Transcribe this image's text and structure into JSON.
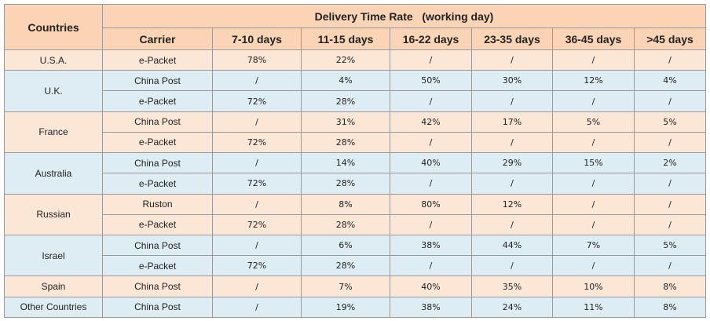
{
  "title": "Delivery Time Rate   (working day)",
  "headers": {
    "countries": "Countries",
    "carrier": "Carrier",
    "ranges": [
      "7-10 days",
      "11-15 days",
      "16-22 days",
      "23-35 days",
      "36-45 days",
      ">45 days"
    ]
  },
  "colors": {
    "header": "#fad4b4",
    "peach": "#fce6d6",
    "blue": "#ddedf3",
    "border": "#9a9a9a"
  },
  "rows": [
    {
      "country": "U.S.A.",
      "carrier": "e-Packet",
      "values": [
        "78%",
        "22%",
        "/",
        "/",
        "/",
        "/"
      ]
    },
    {
      "country": "U.K.",
      "carrier": "China Post",
      "values": [
        "/",
        "4%",
        "50%",
        "30%",
        "12%",
        "4%"
      ]
    },
    {
      "carrier": "e-Packet",
      "values": [
        "72%",
        "28%",
        "/",
        "/",
        "/",
        "/"
      ]
    },
    {
      "country": "France",
      "carrier": "China Post",
      "values": [
        "/",
        "31%",
        "42%",
        "17%",
        "5%",
        "5%"
      ]
    },
    {
      "carrier": "e-Packet",
      "values": [
        "72%",
        "28%",
        "/",
        "/",
        "/",
        "/"
      ]
    },
    {
      "country": "Australia",
      "carrier": "China Post",
      "values": [
        "/",
        "14%",
        "40%",
        "29%",
        "15%",
        "2%"
      ]
    },
    {
      "carrier": "e-Packet",
      "values": [
        "72%",
        "28%",
        "/",
        "/",
        "/",
        "/"
      ]
    },
    {
      "country": "Russian",
      "carrier": "Ruston",
      "values": [
        "/",
        "8%",
        "80%",
        "12%",
        "/",
        "/"
      ]
    },
    {
      "carrier": "e-Packet",
      "values": [
        "72%",
        "28%",
        "/",
        "/",
        "/",
        "/"
      ]
    },
    {
      "country": "Israel",
      "carrier": "China Post",
      "values": [
        "/",
        "6%",
        "38%",
        "44%",
        "7%",
        "5%"
      ]
    },
    {
      "carrier": "e-Packet",
      "values": [
        "72%",
        "28%",
        "/",
        "/",
        "/",
        "/"
      ]
    },
    {
      "country": "Spain",
      "carrier": "China Post",
      "values": [
        "/",
        "7%",
        "40%",
        "35%",
        "10%",
        "8%"
      ]
    },
    {
      "country": "Other Countries",
      "carrier": "China Post",
      "values": [
        "/",
        "19%",
        "38%",
        "24%",
        "11%",
        "8%"
      ]
    }
  ]
}
